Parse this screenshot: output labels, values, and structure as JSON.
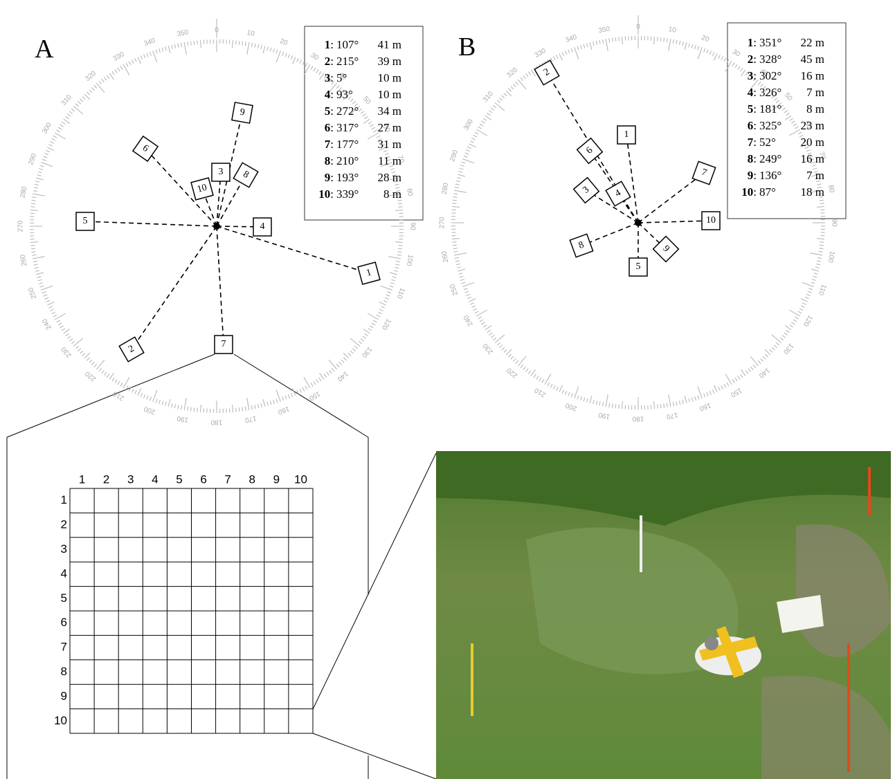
{
  "panel_a": {
    "label": "A",
    "dial": [
      "0",
      "10",
      "20",
      "30",
      "40",
      "50",
      "60",
      "70",
      "80",
      "90",
      "100",
      "110",
      "120",
      "130",
      "140",
      "150",
      "160",
      "170",
      "180",
      "190",
      "200",
      "210",
      "220",
      "230",
      "240",
      "250",
      "260",
      "270",
      "280",
      "290",
      "300",
      "310",
      "320",
      "330",
      "340",
      "350"
    ],
    "entries": [
      {
        "id": "1",
        "bearing": "107°",
        "distance": "41 m"
      },
      {
        "id": "2",
        "bearing": "215°",
        "distance": "39 m"
      },
      {
        "id": "3",
        "bearing": "5°",
        "distance": "10 m"
      },
      {
        "id": "4",
        "bearing": "93°",
        "distance": "10 m"
      },
      {
        "id": "5",
        "bearing": "272°",
        "distance": "34 m"
      },
      {
        "id": "6",
        "bearing": "317°",
        "distance": "27 m"
      },
      {
        "id": "7",
        "bearing": "177°",
        "distance": "31 m"
      },
      {
        "id": "8",
        "bearing": "210°",
        "distance": "11 m"
      },
      {
        "id": "9",
        "bearing": "193°",
        "distance": "28 m"
      },
      {
        "id": "10",
        "bearing": "339°",
        "distance": "8 m"
      }
    ]
  },
  "panel_b": {
    "label": "B",
    "dial": [
      "0",
      "10",
      "20",
      "30",
      "40",
      "50",
      "60",
      "70",
      "80",
      "90",
      "100",
      "110",
      "120",
      "130",
      "140",
      "150",
      "160",
      "170",
      "180",
      "190",
      "200",
      "210",
      "220",
      "230",
      "240",
      "250",
      "260",
      "270",
      "280",
      "290",
      "300",
      "310",
      "320",
      "330",
      "340",
      "350"
    ],
    "entries": [
      {
        "id": "1",
        "bearing": "351°",
        "distance": "22 m"
      },
      {
        "id": "2",
        "bearing": "328°",
        "distance": "45 m"
      },
      {
        "id": "3",
        "bearing": "302°",
        "distance": "16 m"
      },
      {
        "id": "4",
        "bearing": "326°",
        "distance": "7 m"
      },
      {
        "id": "5",
        "bearing": "181°",
        "distance": "8 m"
      },
      {
        "id": "6",
        "bearing": "325°",
        "distance": "23 m"
      },
      {
        "id": "7",
        "bearing": "52°",
        "distance": "20 m"
      },
      {
        "id": "8",
        "bearing": "249°",
        "distance": "16 m"
      },
      {
        "id": "9",
        "bearing": "136°",
        "distance": "7 m"
      },
      {
        "id": "10",
        "bearing": "87°",
        "distance": "18 m"
      }
    ]
  },
  "grid": {
    "columns": [
      "1",
      "2",
      "3",
      "4",
      "5",
      "6",
      "7",
      "8",
      "9",
      "10"
    ],
    "rows": [
      "1",
      "2",
      "3",
      "4",
      "5",
      "6",
      "7",
      "8",
      "9",
      "10"
    ]
  }
}
